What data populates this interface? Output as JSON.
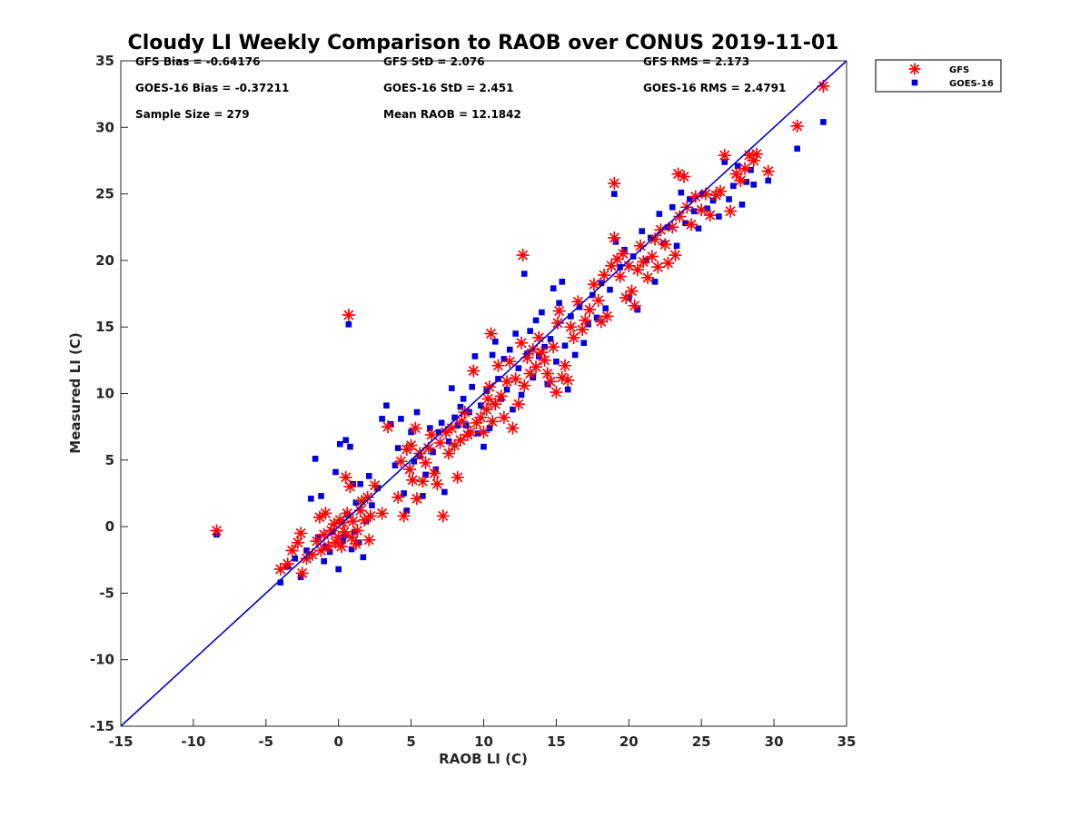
{
  "chart_data": {
    "type": "scatter",
    "title": "Cloudy LI Weekly Comparison to RAOB over CONUS 2019-11-01",
    "xlabel": "RAOB LI (C)",
    "ylabel": "Measured LI (C)",
    "xlim": [
      -15,
      35
    ],
    "ylim": [
      -15,
      35
    ],
    "xticks": [
      "-15",
      "-10",
      "-5",
      "0",
      "5",
      "10",
      "15",
      "20",
      "25",
      "30",
      "35"
    ],
    "yticks": [
      "-15",
      "-10",
      "-5",
      "0",
      "5",
      "10",
      "15",
      "20",
      "25",
      "30",
      "35"
    ],
    "grid": false,
    "legend_position": "outside-top-right",
    "reference_line": {
      "x": [
        -15,
        35
      ],
      "y": [
        -15,
        35
      ],
      "color": "#0000cc"
    },
    "stats": [
      [
        "GFS Bias = -0.64176",
        "GFS StD = 2.076",
        "GFS RMS = 2.173"
      ],
      [
        "GOES-16 Bias = -0.37211",
        "GOES-16 StD = 2.451",
        "GOES-16 RMS = 2.4791"
      ],
      [
        "Sample Size = 279",
        "Mean RAOB = 12.1842",
        ""
      ]
    ],
    "series": [
      {
        "name": "GFS",
        "marker": "asterisk",
        "color": "#ff0000",
        "points": [
          [
            -8.4,
            -0.3
          ],
          [
            -4,
            -3.2
          ],
          [
            -3.5,
            -2.8
          ],
          [
            -3.2,
            -1.8
          ],
          [
            -2.8,
            -1.2
          ],
          [
            -2.6,
            -0.5
          ],
          [
            -2.5,
            -3.5
          ],
          [
            -2.2,
            -2.4
          ],
          [
            -1.8,
            -2.1
          ],
          [
            -1.5,
            -1.1
          ],
          [
            -1.3,
            0.7
          ],
          [
            -1.2,
            -1.8
          ],
          [
            -1.0,
            -0.6
          ],
          [
            -0.9,
            1.0
          ],
          [
            -0.7,
            -1.5
          ],
          [
            -0.5,
            -0.3
          ],
          [
            -0.3,
            0.2
          ],
          [
            -0.2,
            -1.2
          ],
          [
            0,
            -0.8
          ],
          [
            0.1,
            0.5
          ],
          [
            0.2,
            -1.5
          ],
          [
            0.3,
            0.3
          ],
          [
            0.4,
            -0.4
          ],
          [
            0.5,
            3.7
          ],
          [
            0.6,
            1.0
          ],
          [
            0.7,
            15.9
          ],
          [
            0.8,
            3.0
          ],
          [
            0.9,
            -0.8
          ],
          [
            1,
            0.4
          ],
          [
            1.2,
            -1.3
          ],
          [
            1.3,
            -0.3
          ],
          [
            1.5,
            1.2
          ],
          [
            1.6,
            1.9
          ],
          [
            1.8,
            0.5
          ],
          [
            2.0,
            2.2
          ],
          [
            2.1,
            -1.0
          ],
          [
            2.2,
            0.8
          ],
          [
            2.5,
            3.1
          ],
          [
            3.0,
            1.0
          ],
          [
            3.4,
            7.5
          ],
          [
            4.1,
            2.2
          ],
          [
            4.3,
            4.9
          ],
          [
            4.5,
            0.8
          ],
          [
            4.7,
            5.8
          ],
          [
            4.9,
            4.3
          ],
          [
            5.0,
            6.1
          ],
          [
            5.1,
            3.5
          ],
          [
            5.3,
            7.4
          ],
          [
            5.4,
            2.1
          ],
          [
            5.6,
            5.5
          ],
          [
            5.8,
            3.4
          ],
          [
            6.0,
            4.8
          ],
          [
            6.2,
            5.9
          ],
          [
            6.4,
            6.9
          ],
          [
            6.6,
            4.0
          ],
          [
            6.8,
            3.2
          ],
          [
            7.0,
            6.3
          ],
          [
            7.2,
            0.8
          ],
          [
            7.4,
            7.1
          ],
          [
            7.6,
            5.5
          ],
          [
            7.8,
            7.4
          ],
          [
            8.0,
            6.1
          ],
          [
            8.2,
            3.7
          ],
          [
            8.4,
            6.5
          ],
          [
            8.5,
            7.9
          ],
          [
            8.7,
            8.6
          ],
          [
            8.9,
            6.9
          ],
          [
            9.1,
            7.1
          ],
          [
            9.3,
            11.7
          ],
          [
            9.5,
            7.8
          ],
          [
            9.8,
            8.2
          ],
          [
            10.0,
            7.1
          ],
          [
            10.2,
            8.8
          ],
          [
            10.3,
            9.6
          ],
          [
            10.4,
            10.5
          ],
          [
            10.5,
            14.5
          ],
          [
            10.6,
            7.9
          ],
          [
            10.8,
            9.2
          ],
          [
            11.0,
            12.1
          ],
          [
            11.2,
            9.8
          ],
          [
            11.4,
            8.2
          ],
          [
            11.6,
            10.9
          ],
          [
            11.8,
            12.4
          ],
          [
            12.0,
            7.4
          ],
          [
            12.2,
            11.1
          ],
          [
            12.4,
            9.2
          ],
          [
            12.6,
            13.8
          ],
          [
            12.7,
            20.4
          ],
          [
            12.8,
            10.6
          ],
          [
            13.0,
            12.7
          ],
          [
            13.2,
            11.5
          ],
          [
            13.4,
            13.3
          ],
          [
            13.6,
            12.0
          ],
          [
            13.8,
            14.2
          ],
          [
            14.0,
            13.1
          ],
          [
            14.2,
            12.5
          ],
          [
            14.4,
            11.5
          ],
          [
            14.6,
            10.9
          ],
          [
            14.8,
            13.5
          ],
          [
            15.0,
            10.1
          ],
          [
            15.1,
            15.3
          ],
          [
            15.2,
            16.2
          ],
          [
            15.4,
            11.2
          ],
          [
            15.6,
            12.1
          ],
          [
            15.8,
            11.0
          ],
          [
            16.0,
            15.0
          ],
          [
            16.2,
            14.2
          ],
          [
            16.5,
            16.9
          ],
          [
            16.8,
            14.8
          ],
          [
            17.0,
            15.5
          ],
          [
            17.3,
            16.3
          ],
          [
            17.6,
            18.2
          ],
          [
            17.9,
            17.0
          ],
          [
            18.1,
            15.4
          ],
          [
            18.3,
            18.9
          ],
          [
            18.5,
            15.8
          ],
          [
            18.8,
            19.6
          ],
          [
            19.0,
            21.7
          ],
          [
            19.0,
            25.8
          ],
          [
            19.2,
            20.1
          ],
          [
            19.4,
            18.8
          ],
          [
            19.6,
            20.5
          ],
          [
            19.8,
            17.2
          ],
          [
            20.0,
            19.6
          ],
          [
            20.2,
            17.7
          ],
          [
            20.4,
            16.6
          ],
          [
            20.6,
            19.3
          ],
          [
            20.8,
            21.1
          ],
          [
            21.0,
            19.9
          ],
          [
            21.3,
            18.7
          ],
          [
            21.6,
            20.3
          ],
          [
            21.8,
            21.6
          ],
          [
            22.0,
            19.5
          ],
          [
            22.2,
            22.3
          ],
          [
            22.5,
            21.2
          ],
          [
            22.7,
            19.8
          ],
          [
            23.0,
            22.5
          ],
          [
            23.2,
            20.4
          ],
          [
            23.4,
            26.5
          ],
          [
            23.5,
            23.3
          ],
          [
            23.8,
            26.3
          ],
          [
            24.0,
            24.0
          ],
          [
            24.3,
            22.7
          ],
          [
            24.6,
            24.8
          ],
          [
            25.0,
            23.8
          ],
          [
            25.3,
            25.0
          ],
          [
            25.6,
            23.4
          ],
          [
            26.0,
            24.9
          ],
          [
            26.3,
            25.2
          ],
          [
            26.6,
            27.9
          ],
          [
            27.0,
            23.7
          ],
          [
            27.4,
            26.5
          ],
          [
            27.7,
            26.0
          ],
          [
            28.0,
            26.9
          ],
          [
            28.3,
            27.9
          ],
          [
            28.6,
            27.5
          ],
          [
            28.8,
            28.0
          ],
          [
            29.6,
            26.7
          ],
          [
            31.6,
            30.1
          ],
          [
            33.4,
            33.1
          ]
        ]
      },
      {
        "name": "GOES-16",
        "marker": "square",
        "color": "#0000dd",
        "points": [
          [
            -8.4,
            -0.6
          ],
          [
            -4.0,
            -4.2
          ],
          [
            -3.5,
            -3.0
          ],
          [
            -3.0,
            -2.4
          ],
          [
            -2.6,
            -3.8
          ],
          [
            -2.2,
            -1.8
          ],
          [
            -1.9,
            2.1
          ],
          [
            -1.6,
            5.1
          ],
          [
            -1.4,
            -0.8
          ],
          [
            -1.2,
            2.3
          ],
          [
            -1.0,
            -2.6
          ],
          [
            -0.9,
            -1.5
          ],
          [
            -0.6,
            -1.9
          ],
          [
            -0.4,
            -0.4
          ],
          [
            -0.2,
            4.1
          ],
          [
            0.0,
            -3.2
          ],
          [
            0.1,
            6.2
          ],
          [
            0.3,
            -1.1
          ],
          [
            0.4,
            -0.7
          ],
          [
            0.5,
            6.5
          ],
          [
            0.6,
            0.9
          ],
          [
            0.7,
            15.2
          ],
          [
            0.8,
            6.0
          ],
          [
            0.9,
            -1.7
          ],
          [
            1.0,
            3.2
          ],
          [
            1.1,
            -0.4
          ],
          [
            1.2,
            1.8
          ],
          [
            1.4,
            -1.2
          ],
          [
            1.5,
            3.2
          ],
          [
            1.7,
            -2.3
          ],
          [
            1.9,
            0.4
          ],
          [
            2.1,
            3.8
          ],
          [
            2.3,
            1.6
          ],
          [
            2.7,
            2.9
          ],
          [
            3.0,
            8.1
          ],
          [
            3.3,
            9.1
          ],
          [
            3.6,
            7.7
          ],
          [
            3.9,
            4.6
          ],
          [
            4.1,
            5.9
          ],
          [
            4.3,
            8.1
          ],
          [
            4.5,
            2.5
          ],
          [
            4.7,
            1.2
          ],
          [
            5.0,
            7.1
          ],
          [
            5.2,
            4.9
          ],
          [
            5.4,
            8.6
          ],
          [
            5.6,
            5.3
          ],
          [
            5.8,
            2.3
          ],
          [
            6.0,
            3.9
          ],
          [
            6.3,
            7.4
          ],
          [
            6.5,
            5.6
          ],
          [
            6.7,
            4.3
          ],
          [
            6.9,
            7.1
          ],
          [
            7.1,
            7.8
          ],
          [
            7.3,
            2.6
          ],
          [
            7.6,
            6.4
          ],
          [
            7.8,
            10.4
          ],
          [
            8.0,
            8.2
          ],
          [
            8.2,
            7.6
          ],
          [
            8.4,
            9.0
          ],
          [
            8.6,
            9.6
          ],
          [
            8.8,
            7.6
          ],
          [
            9.0,
            8.6
          ],
          [
            9.2,
            10.5
          ],
          [
            9.4,
            12.8
          ],
          [
            9.6,
            7.0
          ],
          [
            9.8,
            9.1
          ],
          [
            10.0,
            6.0
          ],
          [
            10.2,
            10.2
          ],
          [
            10.4,
            7.4
          ],
          [
            10.6,
            12.9
          ],
          [
            10.8,
            13.9
          ],
          [
            11.0,
            11.1
          ],
          [
            11.2,
            9.6
          ],
          [
            11.4,
            12.6
          ],
          [
            11.6,
            10.3
          ],
          [
            11.8,
            13.3
          ],
          [
            12.0,
            8.8
          ],
          [
            12.2,
            14.5
          ],
          [
            12.4,
            11.9
          ],
          [
            12.6,
            9.9
          ],
          [
            12.8,
            19.0
          ],
          [
            13.0,
            13.0
          ],
          [
            13.2,
            14.7
          ],
          [
            13.4,
            11.2
          ],
          [
            13.6,
            15.5
          ],
          [
            13.8,
            12.8
          ],
          [
            14.0,
            16.1
          ],
          [
            14.2,
            13.5
          ],
          [
            14.4,
            10.7
          ],
          [
            14.6,
            14.1
          ],
          [
            14.8,
            17.9
          ],
          [
            15.0,
            12.4
          ],
          [
            15.2,
            16.8
          ],
          [
            15.4,
            18.4
          ],
          [
            15.6,
            13.6
          ],
          [
            15.8,
            10.3
          ],
          [
            16.0,
            15.8
          ],
          [
            16.3,
            12.9
          ],
          [
            16.6,
            16.5
          ],
          [
            16.9,
            13.8
          ],
          [
            17.2,
            15.2
          ],
          [
            17.5,
            17.4
          ],
          [
            17.8,
            15.7
          ],
          [
            18.1,
            18.3
          ],
          [
            18.4,
            16.4
          ],
          [
            18.7,
            17.8
          ],
          [
            19.0,
            25.0
          ],
          [
            19.1,
            21.4
          ],
          [
            19.4,
            19.5
          ],
          [
            19.7,
            20.8
          ],
          [
            20.0,
            17.2
          ],
          [
            20.3,
            20.3
          ],
          [
            20.6,
            16.3
          ],
          [
            20.9,
            22.2
          ],
          [
            21.2,
            20.0
          ],
          [
            21.5,
            21.7
          ],
          [
            21.8,
            18.4
          ],
          [
            22.1,
            23.5
          ],
          [
            22.4,
            21.3
          ],
          [
            22.7,
            22.5
          ],
          [
            23.0,
            24.0
          ],
          [
            23.3,
            21.1
          ],
          [
            23.6,
            25.1
          ],
          [
            23.9,
            22.8
          ],
          [
            24.2,
            24.6
          ],
          [
            24.5,
            23.7
          ],
          [
            24.8,
            22.4
          ],
          [
            25.1,
            25.0
          ],
          [
            25.4,
            23.9
          ],
          [
            25.8,
            24.5
          ],
          [
            26.2,
            23.3
          ],
          [
            26.6,
            27.4
          ],
          [
            26.9,
            24.6
          ],
          [
            27.2,
            25.6
          ],
          [
            27.5,
            27.1
          ],
          [
            27.8,
            24.2
          ],
          [
            28.1,
            25.9
          ],
          [
            28.4,
            26.8
          ],
          [
            28.6,
            25.7
          ],
          [
            29.6,
            26.0
          ],
          [
            31.6,
            28.4
          ],
          [
            33.4,
            30.4
          ]
        ]
      }
    ]
  }
}
